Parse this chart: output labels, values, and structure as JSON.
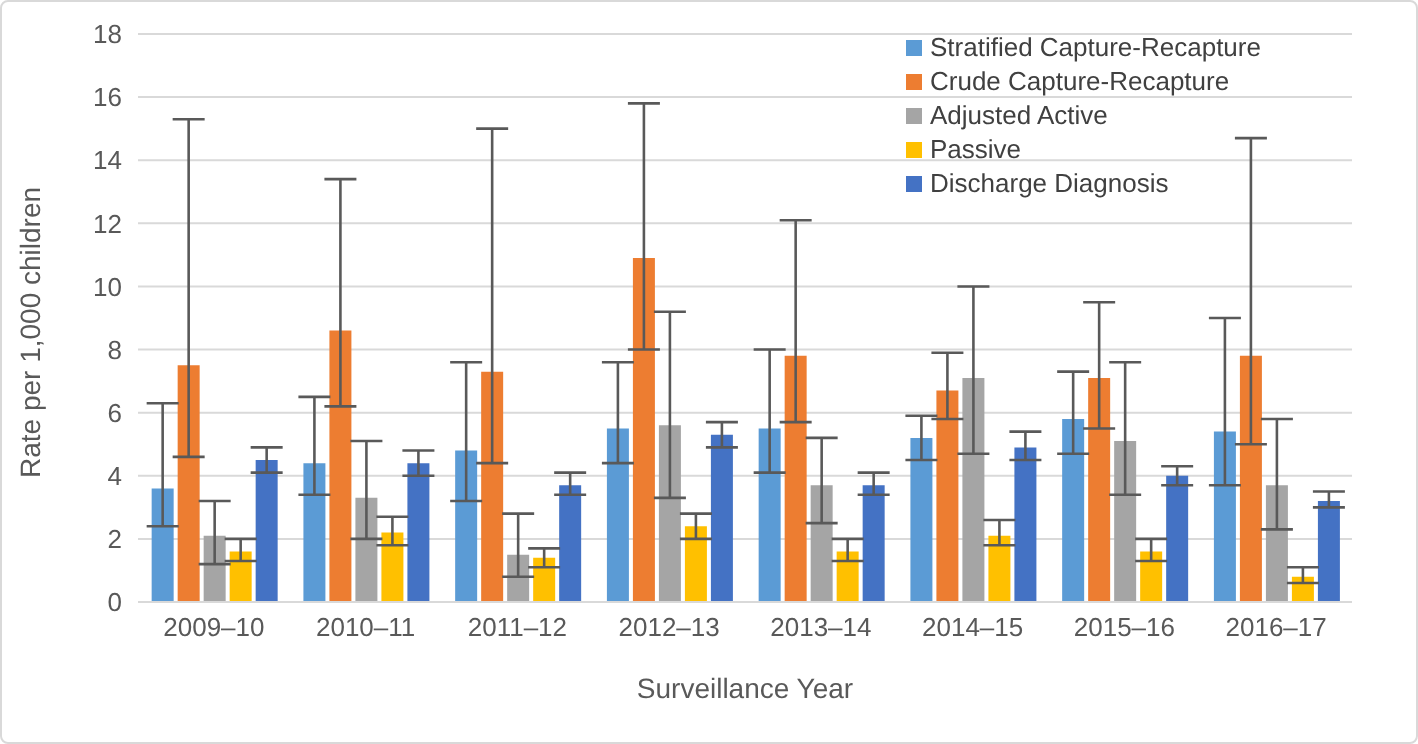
{
  "chart_data": {
    "type": "bar",
    "xlabel": "Surveillance Year",
    "ylabel": "Rate per 1,000 children",
    "categories": [
      "2009–10",
      "2010–11",
      "2011–12",
      "2012–13",
      "2013–14",
      "2014–15",
      "2015–16",
      "2016–17"
    ],
    "series": [
      {
        "name": "Stratified Capture-Recapture",
        "color": "#5b9bd5",
        "values": [
          3.6,
          4.4,
          4.8,
          5.5,
          5.5,
          5.2,
          5.8,
          5.4
        ],
        "errors": [
          [
            2.4,
            6.3
          ],
          [
            3.4,
            6.5
          ],
          [
            3.2,
            7.6
          ],
          [
            4.4,
            7.6
          ],
          [
            4.1,
            8.0
          ],
          [
            4.5,
            5.9
          ],
          [
            4.7,
            7.3
          ],
          [
            3.7,
            9.0
          ]
        ]
      },
      {
        "name": "Crude Capture-Recapture",
        "color": "#ed7d31",
        "values": [
          7.5,
          8.6,
          7.3,
          10.9,
          7.8,
          6.7,
          7.1,
          7.8
        ],
        "errors": [
          [
            4.6,
            15.3
          ],
          [
            6.2,
            13.4
          ],
          [
            4.4,
            15.0
          ],
          [
            8.0,
            15.8
          ],
          [
            5.7,
            12.1
          ],
          [
            5.8,
            7.9
          ],
          [
            5.5,
            9.5
          ],
          [
            5.0,
            14.7
          ]
        ]
      },
      {
        "name": "Adjusted Active",
        "color": "#a5a5a5",
        "values": [
          2.1,
          3.3,
          1.5,
          5.6,
          3.7,
          7.1,
          5.1,
          3.7
        ],
        "errors": [
          [
            1.2,
            3.2
          ],
          [
            2.0,
            5.1
          ],
          [
            0.8,
            2.8
          ],
          [
            3.3,
            9.2
          ],
          [
            2.5,
            5.2
          ],
          [
            4.7,
            10.0
          ],
          [
            3.4,
            7.6
          ],
          [
            2.3,
            5.8
          ]
        ]
      },
      {
        "name": "Passive",
        "color": "#ffc000",
        "values": [
          1.6,
          2.2,
          1.4,
          2.4,
          1.6,
          2.1,
          1.6,
          0.8
        ],
        "errors": [
          [
            1.3,
            2.0
          ],
          [
            1.8,
            2.7
          ],
          [
            1.1,
            1.7
          ],
          [
            2.0,
            2.8
          ],
          [
            1.3,
            2.0
          ],
          [
            1.8,
            2.6
          ],
          [
            1.3,
            2.0
          ],
          [
            0.6,
            1.1
          ]
        ]
      },
      {
        "name": "Discharge Diagnosis",
        "color": "#4472c4",
        "values": [
          4.5,
          4.4,
          3.7,
          5.3,
          3.7,
          4.9,
          4.0,
          3.2
        ],
        "errors": [
          [
            4.1,
            4.9
          ],
          [
            4.0,
            4.8
          ],
          [
            3.4,
            4.1
          ],
          [
            4.9,
            5.7
          ],
          [
            3.4,
            4.1
          ],
          [
            4.5,
            5.4
          ],
          [
            3.7,
            4.3
          ],
          [
            3.0,
            3.5
          ]
        ]
      }
    ],
    "ylim": [
      0,
      18
    ],
    "yticks": [
      0,
      2,
      4,
      6,
      8,
      10,
      12,
      14,
      16,
      18
    ],
    "grid": "y",
    "legend": "top right"
  }
}
